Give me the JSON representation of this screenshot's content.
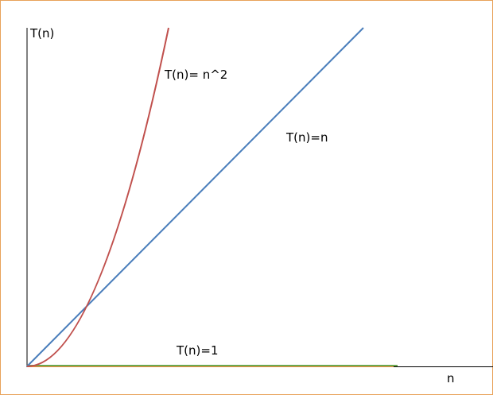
{
  "axes": {
    "y_label": "T(n)",
    "x_label": "n"
  },
  "curves": [
    {
      "label": "T(n)= n^2"
    },
    {
      "label": "T(n)=n"
    },
    {
      "label": "T(n)=1"
    }
  ]
}
